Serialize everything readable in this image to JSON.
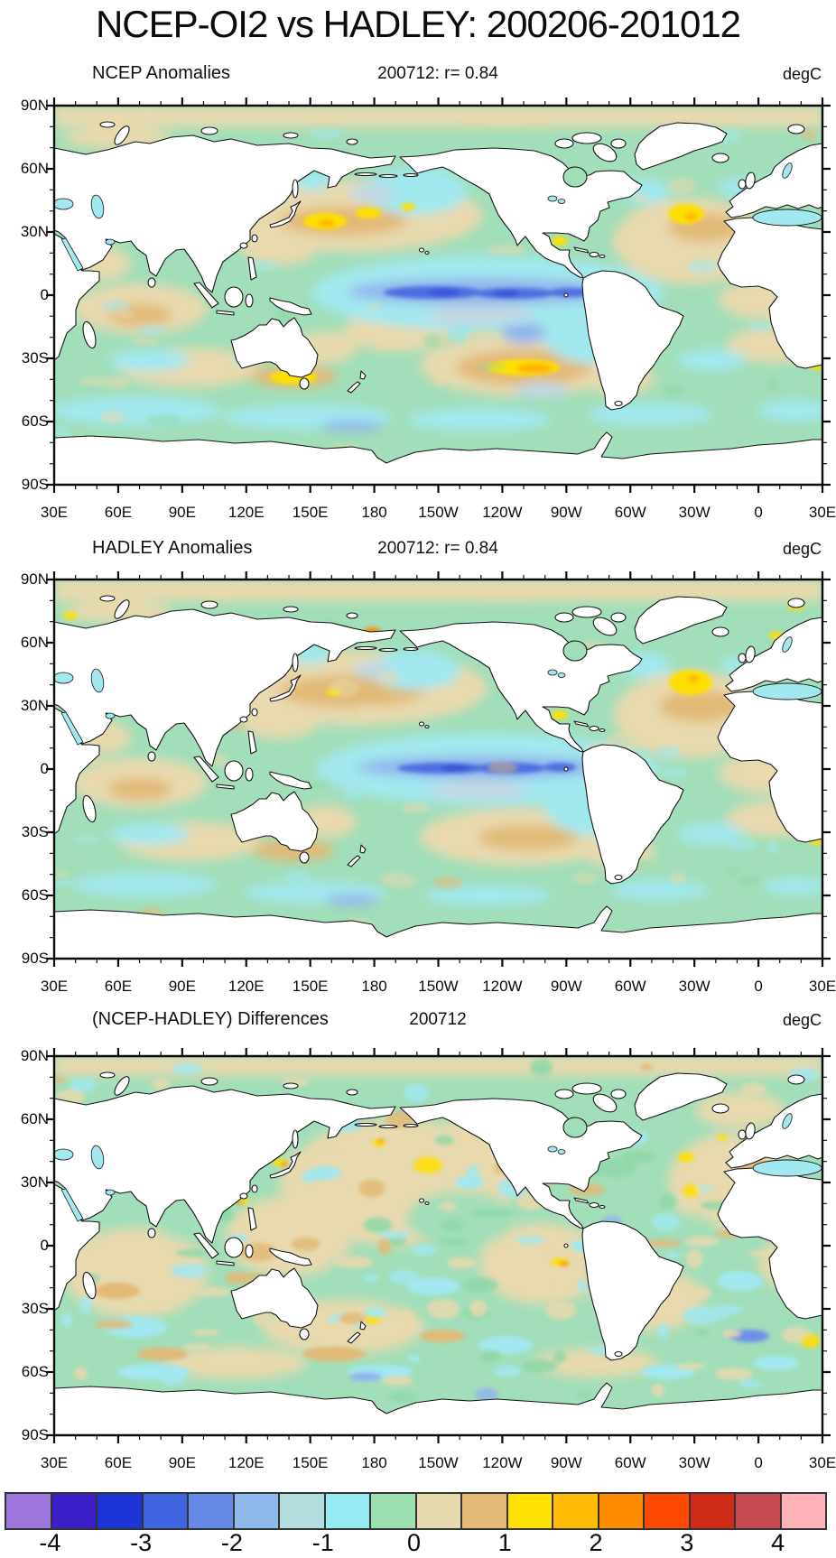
{
  "page_title": "NCEP-OI2 vs HADLEY: 200206-201012",
  "panels": [
    {
      "title": "NCEP Anomalies",
      "subtitle": "200712: r= 0.84",
      "units": "degC"
    },
    {
      "title": "HADLEY Anomalies",
      "subtitle": "200712: r= 0.84",
      "units": "degC"
    },
    {
      "title": "(NCEP-HADLEY) Differences",
      "subtitle": "200712",
      "units": "degC"
    }
  ],
  "axes": {
    "lon_tick_labels": [
      "30E",
      "60E",
      "90E",
      "120E",
      "150E",
      "180",
      "150W",
      "120W",
      "90W",
      "60W",
      "30W",
      "0",
      "30E"
    ],
    "lat_tick_labels": [
      "90N",
      "60N",
      "30N",
      "0",
      "30S",
      "60S",
      "90S"
    ]
  },
  "colorbar": {
    "tick_labels": [
      "-4",
      "-3",
      "-2",
      "-1",
      "0",
      "1",
      "2",
      "3",
      "4"
    ],
    "colors": [
      "#9C76DC",
      "#3C1EC8",
      "#1C34D8",
      "#3E64E2",
      "#6689E8",
      "#8FB9EA",
      "#B2DCDE",
      "#96EBF2",
      "#9CDFB0",
      "#E7D9AE",
      "#E3B976",
      "#FFE204",
      "#FFBC02",
      "#FF8C00",
      "#FF4A00",
      "#CE2A16",
      "#C64A52",
      "#FFB2B8"
    ]
  },
  "chart_data": [
    {
      "type": "heatmap",
      "title": "NCEP Anomalies",
      "subtitle": "200712: r= 0.84",
      "units": "degC",
      "projection": "equirectangular world map, longitude 30E eastward around to 30E, latitude 90S-90N",
      "x_ticks": [
        "30E",
        "60E",
        "90E",
        "120E",
        "150E",
        "180",
        "150W",
        "120W",
        "90W",
        "60W",
        "30W",
        "0",
        "30E"
      ],
      "y_ticks": [
        "90N",
        "60N",
        "30N",
        "0",
        "30S",
        "60S",
        "90S"
      ],
      "contour_min": -4,
      "contour_max": 4,
      "contour_interval": 0.5,
      "notable_features": [
        "Cold La Nina anomaly band (-1.5 to -2.5) along equatorial central/eastern Pacific",
        "Warm band (+1 to +2, yellow cores) ~30-40N in western/central North Pacific",
        "Warm spot (+1.5 to +2.5) in South Pacific near 35S 125W",
        "Warm spot (+1 to +2) in North Atlantic near 45N 30W",
        "Warm spot (+1 to +2) south of Australia near 40S",
        "Cool (-0.5 to -1) Southern Ocean band 45S-65S and northeast Pacific",
        "Weak warm (+0.5 to +1) Arctic margin band and subtropical gyres"
      ]
    },
    {
      "type": "heatmap",
      "title": "HADLEY Anomalies",
      "subtitle": "200712: r= 0.84",
      "units": "degC",
      "projection": "equirectangular world map, longitude 30E eastward around to 30E, latitude 90S-90N",
      "x_ticks": [
        "30E",
        "60E",
        "90E",
        "120E",
        "150E",
        "180",
        "150W",
        "120W",
        "90W",
        "60W",
        "30W",
        "0",
        "30E"
      ],
      "y_ticks": [
        "90N",
        "60N",
        "30N",
        "0",
        "30S",
        "60S",
        "90S"
      ],
      "contour_min": -4,
      "contour_max": 4,
      "contour_interval": 0.5,
      "notable_features": [
        "Cold La Nina anomaly band (-1.5 to -2.5) along equatorial central/eastern Pacific",
        "Warm spot (+2 to +3, orange/red) at Bering Strait / Chukchi Sea",
        "Strong warm spot (+1.5 to +2.5) in North Atlantic near 45N 30W",
        "Warm subtropical gyre band (+0.5 to +1.5) in North Pacific ~25-40N",
        "Warm (+0.5 to +1.5) South Pacific ~25-35S without strong yellow core",
        "Cool (-0.5 to -1) Southern Ocean patches and northeast Pacific",
        "Yellow warm spots along Norway coast and Svalbard"
      ]
    },
    {
      "type": "heatmap",
      "title": "(NCEP-HADLEY) Differences",
      "subtitle": "200712",
      "units": "degC",
      "projection": "equirectangular world map, longitude 30E eastward around to 30E, latitude 90S-90N",
      "x_ticks": [
        "30E",
        "60E",
        "90E",
        "120E",
        "150E",
        "180",
        "150W",
        "120W",
        "90W",
        "60W",
        "30W",
        "0",
        "30E"
      ],
      "y_ticks": [
        "90N",
        "60N",
        "30N",
        "0",
        "30S",
        "60S",
        "90S"
      ],
      "contour_min": -4,
      "contour_max": 4,
      "contour_interval": 0.5,
      "notable_features": [
        "Differences mostly within +/-0.5 degC (fine tan/green/cyan speckle everywhere)",
        "Scattered small +1 to +2 (yellow/orange) spots along western boundary currents and coasts",
        "Cool spot (-1 to -1.5, blue) in South Atlantic near 45S",
        "Warm (+0.5) band along Arctic margin"
      ]
    }
  ]
}
